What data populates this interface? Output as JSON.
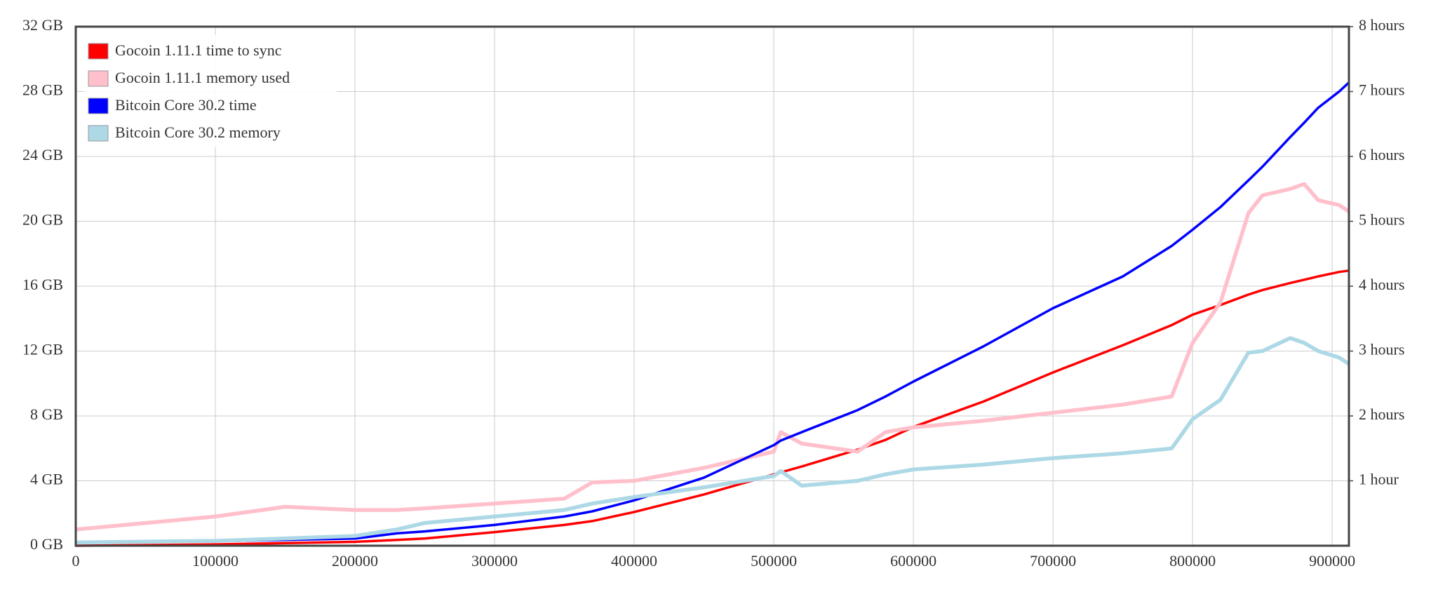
{
  "chart_data": {
    "type": "line",
    "x": [
      0,
      50000,
      100000,
      150000,
      200000,
      230000,
      250000,
      300000,
      350000,
      370000,
      400000,
      450000,
      500000,
      505000,
      520000,
      560000,
      580000,
      600000,
      650000,
      700000,
      750000,
      785000,
      800000,
      820000,
      840000,
      850000,
      870000,
      880000,
      890000,
      905000,
      912000
    ],
    "series": [
      {
        "name": "Gocoin 1.11.1 time to sync",
        "color": "#ff0000",
        "axis": "y2",
        "values": [
          0,
          0.01,
          0.02,
          0.04,
          0.06,
          0.09,
          0.11,
          0.21,
          0.32,
          0.38,
          0.52,
          0.79,
          1.1,
          1.13,
          1.22,
          1.48,
          1.63,
          1.83,
          2.22,
          2.67,
          3.09,
          3.4,
          3.56,
          3.71,
          3.87,
          3.94,
          4.05,
          4.1,
          4.15,
          4.22,
          4.24
        ]
      },
      {
        "name": "Gocoin 1.11.1 memory used",
        "color": "#ffc0cb",
        "axis": "y",
        "values": [
          1.0,
          1.4,
          1.8,
          2.4,
          2.2,
          2.2,
          2.3,
          2.6,
          2.9,
          3.9,
          4.0,
          4.8,
          5.8,
          7.0,
          6.3,
          5.8,
          7.0,
          7.3,
          7.7,
          8.2,
          8.7,
          9.2,
          12.5,
          15.0,
          20.5,
          21.6,
          22.0,
          22.3,
          21.3,
          21.0,
          20.6
        ]
      },
      {
        "name": "Bitcoin Core 30.2 time",
        "color": "#0000ff",
        "axis": "y2",
        "values": [
          0.05,
          0.06,
          0.07,
          0.09,
          0.11,
          0.19,
          0.22,
          0.32,
          0.45,
          0.53,
          0.7,
          1.05,
          1.55,
          1.62,
          1.75,
          2.09,
          2.3,
          2.53,
          3.07,
          3.66,
          4.15,
          4.62,
          4.87,
          5.22,
          5.63,
          5.84,
          6.3,
          6.52,
          6.75,
          7.0,
          7.14
        ]
      },
      {
        "name": "Bitcoin Core 30.2 memory",
        "color": "#add8e6",
        "axis": "y",
        "values": [
          0.2,
          0.25,
          0.3,
          0.45,
          0.6,
          1.0,
          1.4,
          1.8,
          2.2,
          2.6,
          3.0,
          3.6,
          4.3,
          4.6,
          3.7,
          4.0,
          4.4,
          4.7,
          5.0,
          5.4,
          5.7,
          6.0,
          7.8,
          9.0,
          11.9,
          12.0,
          12.8,
          12.5,
          12.0,
          11.6,
          11.2
        ]
      }
    ],
    "xlim": [
      0,
      912000
    ],
    "xticks": [
      0,
      100000,
      200000,
      300000,
      400000,
      500000,
      600000,
      700000,
      800000,
      900000
    ],
    "ylim": [
      0,
      32
    ],
    "yticks": [
      {
        "value": 0,
        "label": "0 GB"
      },
      {
        "value": 4,
        "label": "4 GB"
      },
      {
        "value": 8,
        "label": "8 GB"
      },
      {
        "value": 12,
        "label": "12 GB"
      },
      {
        "value": 16,
        "label": "16 GB"
      },
      {
        "value": 20,
        "label": "20 GB"
      },
      {
        "value": 24,
        "label": "24 GB"
      },
      {
        "value": 28,
        "label": "28 GB"
      },
      {
        "value": 32,
        "label": "32 GB"
      }
    ],
    "y2lim": [
      0,
      8
    ],
    "y2ticks": [
      {
        "value": 1,
        "label": "1 hour"
      },
      {
        "value": 2,
        "label": "2 hours"
      },
      {
        "value": 3,
        "label": "3 hours"
      },
      {
        "value": 4,
        "label": "4 hours"
      },
      {
        "value": 5,
        "label": "5 hours"
      },
      {
        "value": 6,
        "label": "6 hours"
      },
      {
        "value": 7,
        "label": "7 hours"
      },
      {
        "value": 8,
        "label": "8 hours"
      }
    ],
    "grid": true,
    "legend": "top-left"
  }
}
